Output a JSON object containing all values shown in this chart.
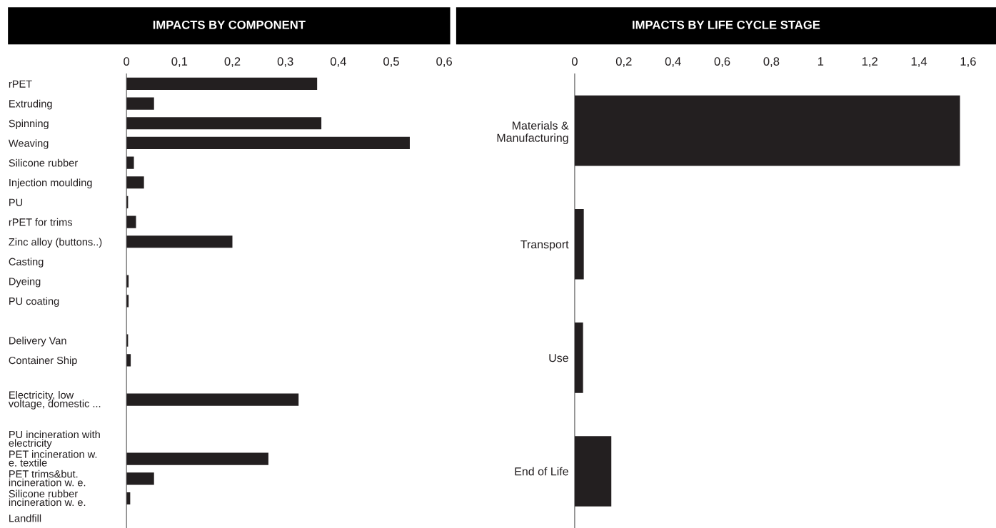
{
  "chart_data": [
    {
      "type": "bar",
      "orientation": "horizontal",
      "title": "IMPACTS BY COMPONENT",
      "categories": [
        "rPET",
        "Extruding",
        "Spinning",
        "Weaving",
        "Silicone rubber",
        "Injection moulding",
        "PU",
        "rPET for trims",
        "Zinc alloy (buttons..)",
        "Casting",
        "Dyeing",
        "PU coating",
        null,
        "Delivery Van",
        "Container Ship",
        null,
        "Electricity, low\nvoltage, domestic ...",
        null,
        "PU incineration with\nelectricity",
        "PET incineration w.\ne. textile",
        "PET trims&but.\nincineration w. e.",
        "Silicone rubber\nincineration w. e.",
        "Landfill"
      ],
      "values": [
        0.36,
        0.052,
        0.368,
        0.535,
        0.014,
        0.033,
        0.003,
        0.018,
        0.2,
        0,
        0.004,
        0.004,
        null,
        0.003,
        0.008,
        null,
        0.325,
        null,
        0,
        0.268,
        0.052,
        0.007,
        0
      ],
      "color": "#231f20",
      "xlim": [
        0,
        0.6
      ],
      "xticks": [
        0,
        {
          "value": 0.1,
          "label": "0,1"
        },
        {
          "value": 0.2,
          "label": "0,2"
        },
        {
          "value": 0.3,
          "label": "0,3"
        },
        {
          "value": 0.4,
          "label": "0,4"
        },
        {
          "value": 0.5,
          "label": "0,5"
        },
        {
          "value": 0.6,
          "label": "0,6"
        }
      ],
      "grid": false,
      "legend": false
    },
    {
      "type": "bar",
      "orientation": "horizontal",
      "title": "IMPACTS BY LIFE CYCLE STAGE",
      "categories": [
        "Materials &\nManufacturing",
        "Transport",
        "Use",
        "End of Life"
      ],
      "values": [
        1.567,
        0.037,
        0.034,
        0.149
      ],
      "color": "#231f20",
      "xlim": [
        0,
        1.6
      ],
      "xticks": [
        0,
        {
          "value": 0.2,
          "label": "0,2"
        },
        {
          "value": 0.4,
          "label": "0,4"
        },
        {
          "value": 0.6,
          "label": "0,6"
        },
        {
          "value": 0.8,
          "label": "0,8"
        },
        1,
        {
          "value": 1.2,
          "label": "1,2"
        },
        {
          "value": 1.4,
          "label": "1,4"
        },
        {
          "value": 1.6,
          "label": "1,6"
        }
      ],
      "grid": false,
      "legend": false
    }
  ]
}
